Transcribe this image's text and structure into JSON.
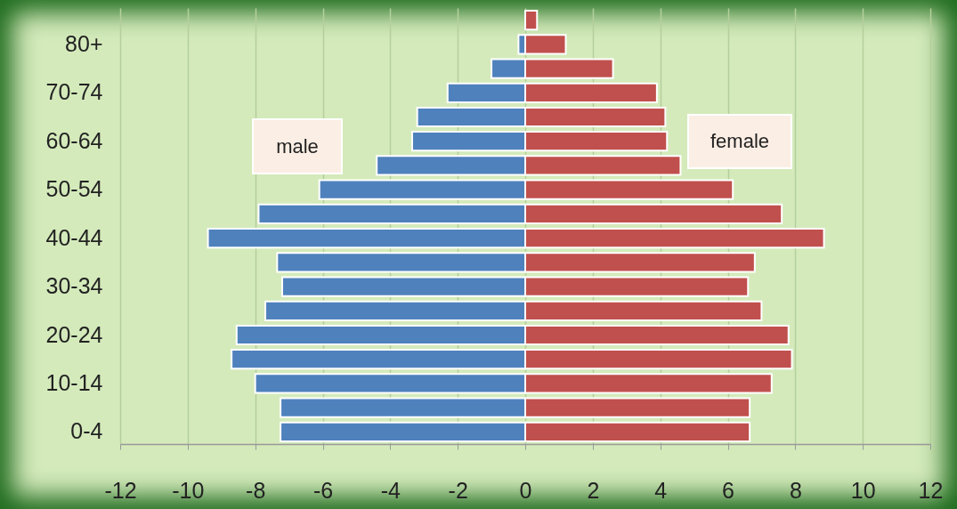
{
  "chart_data": {
    "type": "bar",
    "orientation": "horizontal",
    "categories": [
      null,
      "80+",
      null,
      "70-74",
      null,
      "60-64",
      null,
      "50-54",
      null,
      "40-44",
      null,
      "30-34",
      null,
      "20-24",
      null,
      "10-14",
      null,
      "0-4"
    ],
    "series": [
      {
        "name": "male",
        "color": "#4f81bd",
        "values": [
          null,
          -0.2,
          -1.0,
          -2.3,
          -3.2,
          -3.35,
          -4.4,
          -6.1,
          -7.9,
          -9.4,
          -7.35,
          -7.2,
          -7.7,
          -8.55,
          -8.7,
          -8.0,
          -7.25,
          -7.25
        ]
      },
      {
        "name": "female",
        "color": "#c0504d",
        "values": [
          0.35,
          1.2,
          2.6,
          3.9,
          4.15,
          4.2,
          4.6,
          6.15,
          7.6,
          8.85,
          6.8,
          6.6,
          7.0,
          7.8,
          7.9,
          7.3,
          6.65,
          6.65
        ]
      }
    ],
    "xlim": [
      -12,
      12
    ],
    "xticks": [
      -12,
      -10,
      -8,
      -6,
      -4,
      -2,
      0,
      2,
      4,
      6,
      8,
      10,
      12
    ],
    "stacked": true,
    "grid": "x",
    "legend": false
  }
}
